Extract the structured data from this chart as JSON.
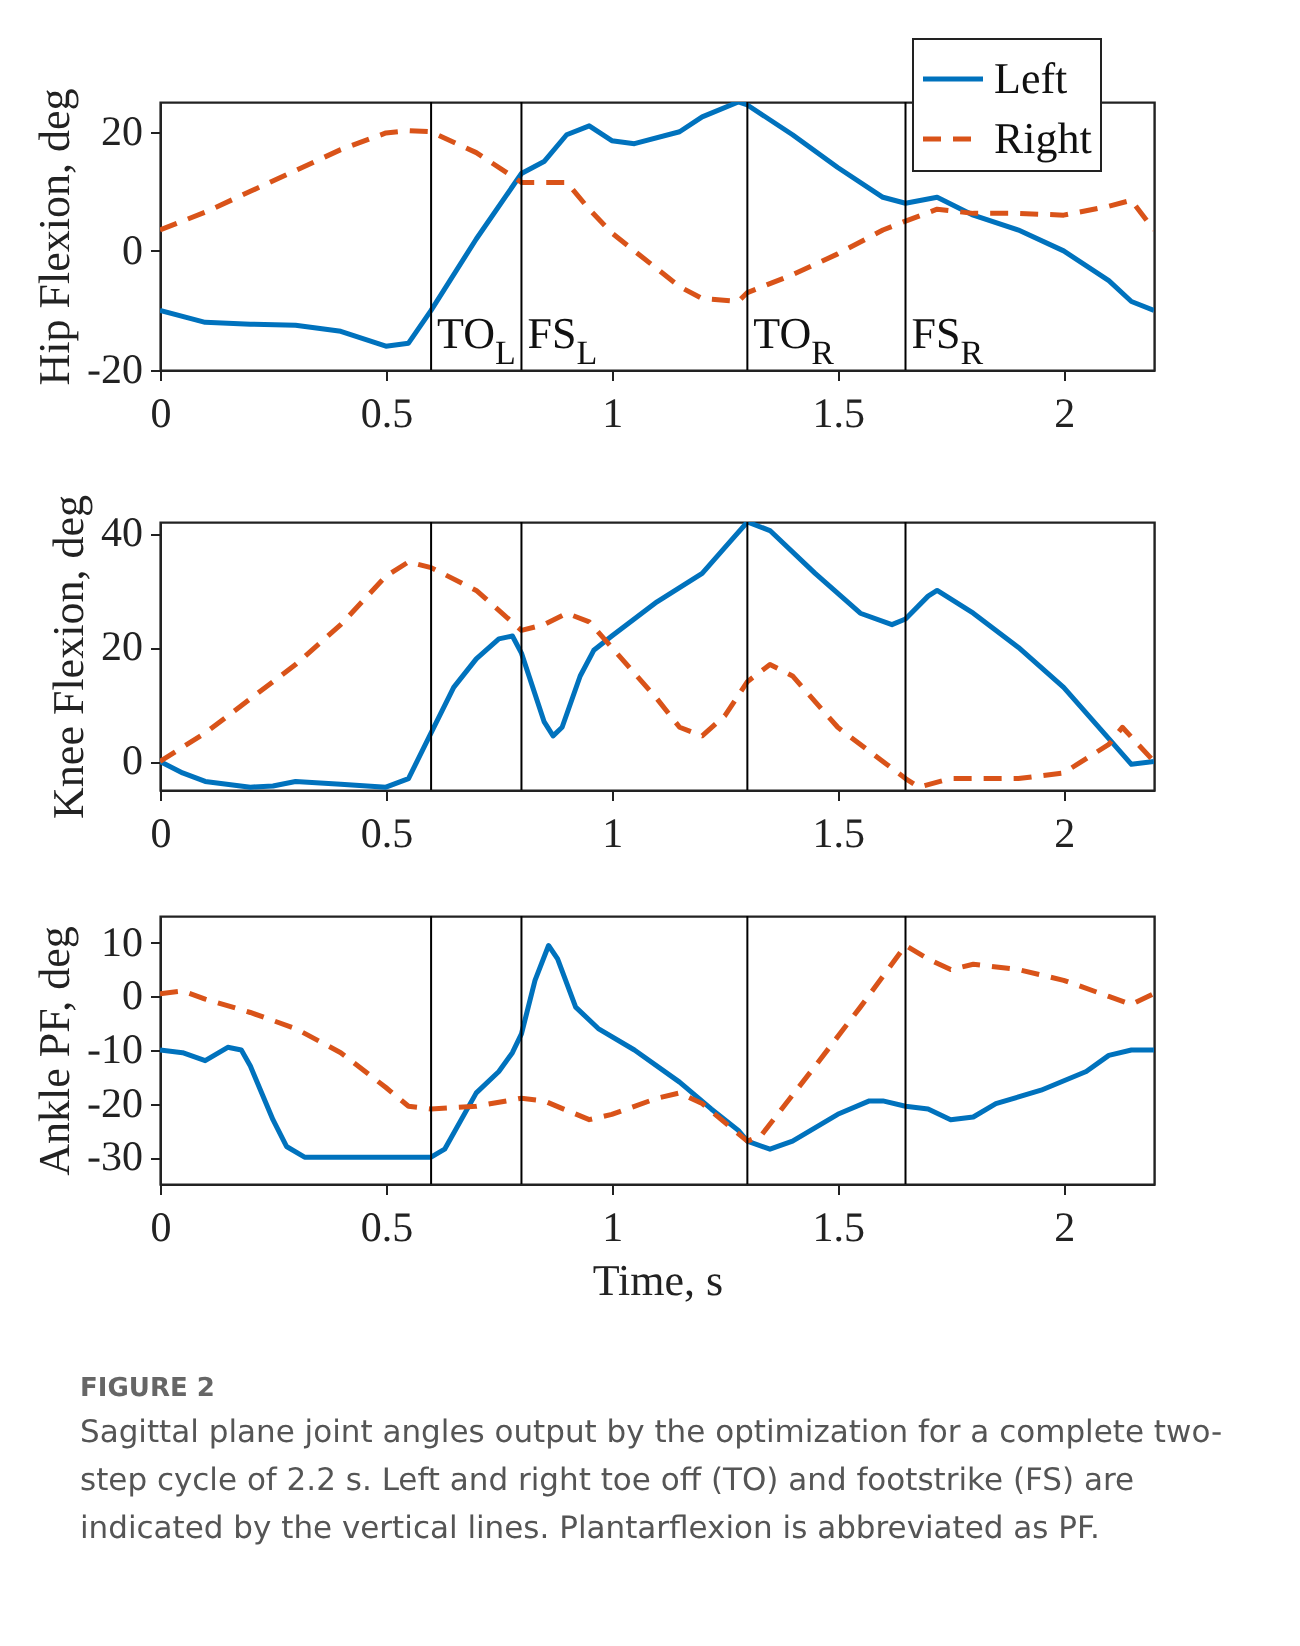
{
  "chart_data": [
    {
      "type": "line",
      "ylabel": "Hip Flexion, deg",
      "xlim": [
        0,
        2.2
      ],
      "xticks": [
        0,
        0.5,
        1,
        1.5,
        2
      ],
      "ylim": [
        -20,
        25
      ],
      "yticks": [
        -20,
        0,
        20
      ],
      "grid": false,
      "legend": "top right",
      "x": [
        0,
        0.1,
        0.2,
        0.3,
        0.4,
        0.5,
        0.55,
        0.6,
        0.7,
        0.8,
        0.85,
        0.9,
        0.95,
        1.0,
        1.05,
        1.15,
        1.2,
        1.28,
        1.3,
        1.4,
        1.5,
        1.6,
        1.65,
        1.72,
        1.8,
        1.9,
        2.0,
        2.1,
        2.15,
        2.2
      ],
      "series": [
        {
          "name": "Left",
          "color": "#0072bd",
          "line_style": "solid",
          "values": [
            -10,
            -12,
            -12.3,
            -12.5,
            -13.5,
            -16,
            -15.5,
            -10,
            2,
            13,
            15,
            19.5,
            21,
            18.5,
            18,
            20,
            22.5,
            25,
            24.5,
            19.5,
            14,
            9,
            8,
            9,
            6,
            3.5,
            0,
            -5,
            -8.5,
            -10
          ]
        },
        {
          "name": "Right",
          "color": "#d95319",
          "line_style": "dashed",
          "values": [
            3.5,
            6.5,
            10,
            13.5,
            17,
            19.8,
            20.2,
            20,
            16.5,
            11.5,
            11.5,
            11.5,
            7,
            3,
            0,
            -6,
            -8,
            -8.5,
            -7,
            -4,
            -0.5,
            3.5,
            5,
            7,
            6.3,
            6.3,
            6,
            7.5,
            8.5,
            3.5
          ]
        }
      ],
      "ref_lines": [
        {
          "axis": "x",
          "value": 0.6,
          "label": "TO$_{L}$"
        },
        {
          "axis": "x",
          "value": 0.8,
          "label": "FS$_{L}$"
        },
        {
          "axis": "x",
          "value": 1.3,
          "label": "TO$_{R}$"
        },
        {
          "axis": "x",
          "value": 1.65,
          "label": "FS$_{R}$"
        }
      ]
    },
    {
      "type": "line",
      "ylabel": "Knee Flexion, deg",
      "xlim": [
        0,
        2.2
      ],
      "xticks": [
        0,
        0.5,
        1,
        1.5,
        2
      ],
      "ylim": [
        -5,
        42
      ],
      "yticks": [
        0,
        20,
        40
      ],
      "grid": false,
      "series": [
        {
          "color": "#0072bd",
          "line_style": "solid",
          "x": [
            0,
            0.05,
            0.1,
            0.2,
            0.25,
            0.3,
            0.4,
            0.5,
            0.55,
            0.6,
            0.65,
            0.7,
            0.75,
            0.78,
            0.8,
            0.85,
            0.87,
            0.89,
            0.93,
            0.96,
            1.0,
            1.1,
            1.2,
            1.25,
            1.3,
            1.35,
            1.45,
            1.55,
            1.62,
            1.65,
            1.7,
            1.72,
            1.8,
            1.9,
            2.0,
            2.1,
            2.15,
            2.2
          ],
          "values": [
            0,
            -2,
            -3.5,
            -4.5,
            -4.3,
            -3.5,
            -4,
            -4.5,
            -3,
            5,
            13,
            18,
            21.5,
            22,
            19,
            7,
            4.5,
            6,
            15,
            19.5,
            22,
            28,
            33,
            37.5,
            42,
            40.5,
            33,
            26,
            24,
            25,
            29,
            30,
            26,
            20,
            13,
            4,
            -0.5,
            0
          ]
        },
        {
          "color": "#d95319",
          "line_style": "dashed",
          "x": [
            0,
            0.1,
            0.2,
            0.3,
            0.4,
            0.5,
            0.55,
            0.6,
            0.7,
            0.8,
            0.85,
            0.9,
            0.95,
            1.0,
            1.1,
            1.15,
            1.2,
            1.25,
            1.3,
            1.35,
            1.4,
            1.5,
            1.6,
            1.65,
            1.68,
            1.75,
            1.9,
            2.0,
            2.1,
            2.13,
            2.2
          ],
          "values": [
            0,
            5,
            11,
            17,
            24,
            32.5,
            35,
            34,
            30,
            23,
            24,
            26,
            24.5,
            20,
            11,
            6,
            4.5,
            8,
            14,
            17,
            15,
            6,
            0,
            -3,
            -4.5,
            -3,
            -3,
            -2,
            3,
            6,
            0
          ]
        }
      ],
      "ref_lines": [
        {
          "axis": "x",
          "value": 0.6
        },
        {
          "axis": "x",
          "value": 0.8
        },
        {
          "axis": "x",
          "value": 1.3
        },
        {
          "axis": "x",
          "value": 1.65
        }
      ]
    },
    {
      "type": "line",
      "ylabel": "Ankle PF, deg",
      "xlabel": "Time, s",
      "xlim": [
        0,
        2.2
      ],
      "xticks": [
        0,
        0.5,
        1,
        1.5,
        2
      ],
      "ylim": [
        -35,
        15
      ],
      "yticks": [
        -30,
        -20,
        -10,
        0,
        10
      ],
      "grid": false,
      "series": [
        {
          "color": "#0072bd",
          "line_style": "solid",
          "x": [
            0,
            0.05,
            0.1,
            0.15,
            0.18,
            0.2,
            0.25,
            0.28,
            0.32,
            0.5,
            0.6,
            0.63,
            0.7,
            0.75,
            0.78,
            0.8,
            0.83,
            0.86,
            0.88,
            0.92,
            0.97,
            1.05,
            1.15,
            1.22,
            1.28,
            1.3,
            1.35,
            1.4,
            1.5,
            1.57,
            1.6,
            1.65,
            1.7,
            1.75,
            1.8,
            1.85,
            1.95,
            2.05,
            2.1,
            2.15,
            2.2
          ],
          "values": [
            -10,
            -10.5,
            -12,
            -9.5,
            -10,
            -13,
            -23,
            -28,
            -30,
            -30,
            -30,
            -28.5,
            -18,
            -14,
            -10.5,
            -7,
            3,
            9.5,
            7,
            -2,
            -6,
            -10,
            -16,
            -21,
            -25,
            -27,
            -28.5,
            -27,
            -22,
            -19.5,
            -19.5,
            -20.5,
            -21,
            -23,
            -22.5,
            -20,
            -17.5,
            -14,
            -11,
            -10,
            -10
          ]
        },
        {
          "color": "#d95319",
          "line_style": "dashed",
          "x": [
            0,
            0.05,
            0.1,
            0.2,
            0.3,
            0.4,
            0.5,
            0.55,
            0.6,
            0.7,
            0.8,
            0.85,
            0.95,
            1.0,
            1.1,
            1.15,
            1.2,
            1.3,
            1.33,
            1.45,
            1.55,
            1.65,
            1.7,
            1.75,
            1.8,
            1.9,
            2.0,
            2.1,
            2.15,
            2.2
          ],
          "values": [
            0.5,
            1,
            -0.5,
            -3,
            -6,
            -10.5,
            -17,
            -20.5,
            -21,
            -20.5,
            -19,
            -19.5,
            -23,
            -22,
            -19,
            -18,
            -20,
            -27,
            -26,
            -13,
            -2,
            9.5,
            7,
            5,
            6,
            5,
            3,
            0,
            -1.5,
            0.5
          ]
        }
      ],
      "ref_lines": [
        {
          "axis": "x",
          "value": 0.6
        },
        {
          "axis": "x",
          "value": 0.8
        },
        {
          "axis": "x",
          "value": 1.3
        },
        {
          "axis": "x",
          "value": 1.65
        }
      ],
      "annotations": [
        "FIGURE 2",
        "Sagittal plane joint angles output by the optimization for a complete two-step cycle of 2.2 s. Left and right toe off (TO) and footstrike (FS) are indicated by the vertical lines. Plantarflexion is abbreviated as PF."
      ]
    }
  ]
}
